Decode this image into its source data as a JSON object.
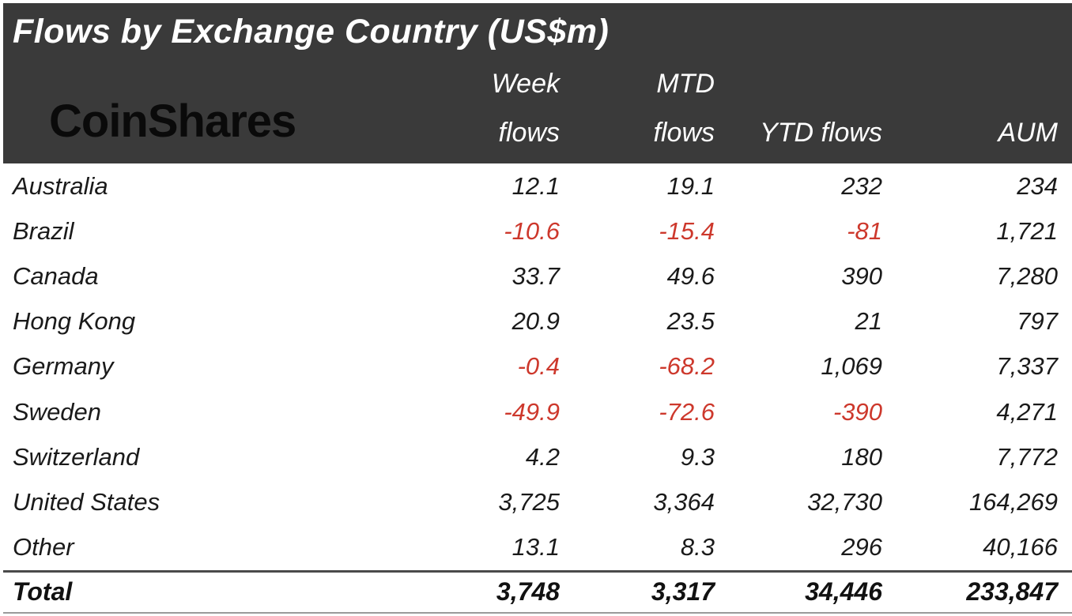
{
  "title": "Flows by Exchange Country (US$m)",
  "logo_text": "CoinShares",
  "columns": {
    "week_line1": "Week",
    "week_line2": "flows",
    "mtd_line1": "MTD",
    "mtd_line2": "flows",
    "ytd": "YTD flows",
    "aum": "AUM"
  },
  "rows": [
    {
      "country": "Australia",
      "week": "12.1",
      "mtd": "19.1",
      "ytd": "232",
      "aum": "234"
    },
    {
      "country": "Brazil",
      "week": "-10.6",
      "mtd": "-15.4",
      "ytd": "-81",
      "aum": "1,721"
    },
    {
      "country": "Canada",
      "week": "33.7",
      "mtd": "49.6",
      "ytd": "390",
      "aum": "7,280"
    },
    {
      "country": "Hong Kong",
      "week": "20.9",
      "mtd": "23.5",
      "ytd": "21",
      "aum": "797"
    },
    {
      "country": "Germany",
      "week": "-0.4",
      "mtd": "-68.2",
      "ytd": "1,069",
      "aum": "7,337"
    },
    {
      "country": "Sweden",
      "week": "-49.9",
      "mtd": "-72.6",
      "ytd": "-390",
      "aum": "4,271"
    },
    {
      "country": "Switzerland",
      "week": "4.2",
      "mtd": "9.3",
      "ytd": "180",
      "aum": "7,772"
    },
    {
      "country": "United States",
      "week": "3,725",
      "mtd": "3,364",
      "ytd": "32,730",
      "aum": "164,269"
    },
    {
      "country": "Other",
      "week": "13.1",
      "mtd": "8.3",
      "ytd": "296",
      "aum": "40,166"
    }
  ],
  "total": {
    "label": "Total",
    "week": "3,748",
    "mtd": "3,317",
    "ytd": "34,446",
    "aum": "233,847"
  },
  "colors": {
    "header_bg": "#3a3a3a",
    "header_text": "#ffffff",
    "text": "#1a1a1a",
    "negative": "#cd382c"
  },
  "chart_data": {
    "type": "table",
    "title": "Flows by Exchange Country (US$m)",
    "categories": [
      "Australia",
      "Brazil",
      "Canada",
      "Hong Kong",
      "Germany",
      "Sweden",
      "Switzerland",
      "United States",
      "Other"
    ],
    "series": [
      {
        "name": "Week flows",
        "values": [
          12.1,
          -10.6,
          33.7,
          20.9,
          -0.4,
          -49.9,
          4.2,
          3725,
          13.1
        ]
      },
      {
        "name": "MTD flows",
        "values": [
          19.1,
          -15.4,
          49.6,
          23.5,
          -68.2,
          -72.6,
          9.3,
          3364,
          8.3
        ]
      },
      {
        "name": "YTD flows",
        "values": [
          232,
          -81,
          390,
          21,
          1069,
          -390,
          180,
          32730,
          296
        ]
      },
      {
        "name": "AUM",
        "values": [
          234,
          1721,
          7280,
          797,
          7337,
          4271,
          7772,
          164269,
          40166
        ]
      }
    ],
    "totals": {
      "Week flows": 3748,
      "MTD flows": 3317,
      "YTD flows": 34446,
      "AUM": 233847
    },
    "notes": "Negative values rendered in red; all text italic except CoinShares logo"
  }
}
